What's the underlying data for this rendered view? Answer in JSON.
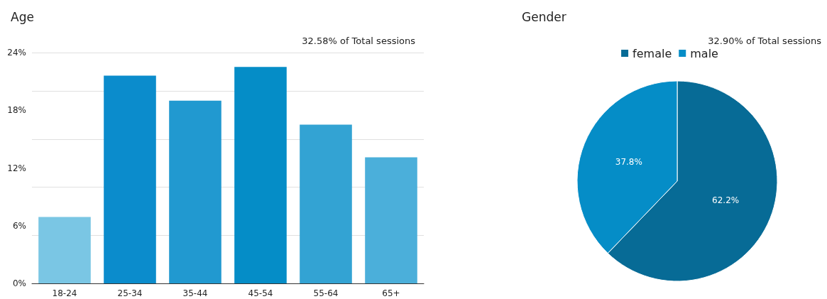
{
  "chart_data": [
    {
      "type": "bar",
      "title": "Age",
      "subtitle": "32.58% of Total sessions",
      "categories": [
        "18-24",
        "25-34",
        "35-44",
        "45-54",
        "55-64",
        "65+"
      ],
      "values": [
        6.9,
        21.6,
        19.0,
        22.5,
        16.5,
        13.1
      ],
      "colors": [
        "#7ac6e4",
        "#0b8ccc",
        "#2199d0",
        "#058dc7",
        "#33a3d3",
        "#4bafda"
      ],
      "ylim": [
        0,
        24
      ],
      "yticks": [
        {
          "value": 0,
          "label": "0%"
        },
        {
          "value": 6,
          "label": "6%"
        },
        {
          "value": 12,
          "label": "12%"
        },
        {
          "value": 18,
          "label": "18%"
        },
        {
          "value": 24,
          "label": "24%"
        }
      ],
      "grid": "y",
      "legend": false
    },
    {
      "type": "pie",
      "title": "Gender",
      "subtitle": "32.90% of Total sessions",
      "categories": [
        "female",
        "male"
      ],
      "values": [
        62.2,
        37.8
      ],
      "colors": [
        "#076b96",
        "#058dc7"
      ],
      "value_labels": [
        "62.2%",
        "37.8%"
      ],
      "legend": "top"
    }
  ]
}
